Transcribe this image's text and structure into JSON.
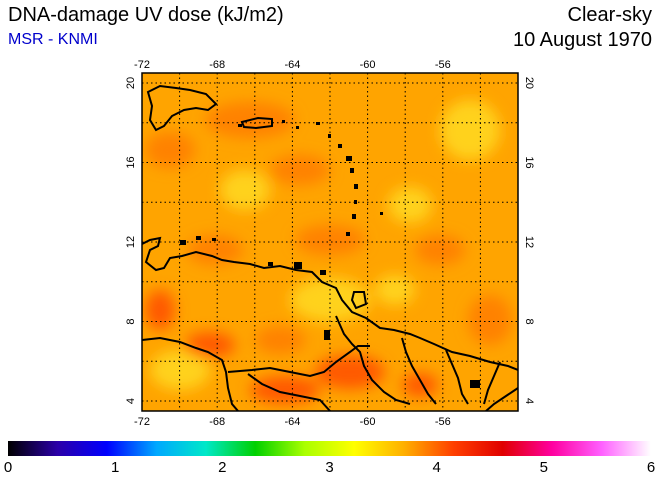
{
  "header": {
    "title": "DNA-damage UV dose (kJ/m2)",
    "source": "MSR - KNMI",
    "sky": "Clear-sky",
    "date": "10 August 1970"
  },
  "map": {
    "lon_ticks": [
      "-72",
      "-68",
      "-64",
      "-60",
      "-56"
    ],
    "lat_ticks": [
      "4",
      "8",
      "12",
      "16",
      "20"
    ],
    "lon_range": [
      -72,
      -52
    ],
    "lat_range": [
      3.5,
      20.5
    ],
    "background_color": "#ffa400"
  },
  "colorbar": {
    "labels": [
      "0",
      "1",
      "2",
      "3",
      "4",
      "5",
      "6"
    ],
    "min": 0,
    "max": 6,
    "stops": [
      "#000000",
      "#2b00a8",
      "#0000ff",
      "#00a8ff",
      "#00e8c8",
      "#00d000",
      "#aaff00",
      "#ffff00",
      "#ffb000",
      "#ff4000",
      "#e00000",
      "#ff00a0",
      "#ff60ff",
      "#ffffff"
    ]
  },
  "field_colors": {
    "light": "#ffd21a",
    "mid": "#ffae00",
    "dark": "#ff8200",
    "red": "#ff5a00",
    "land": "#000000"
  }
}
